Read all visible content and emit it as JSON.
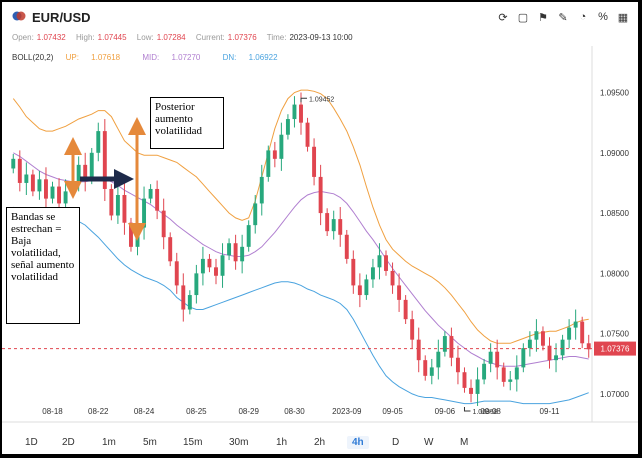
{
  "header": {
    "symbol": "EUR/USD",
    "toolbar_icons": [
      "refresh-icon",
      "square-icon",
      "flag-icon",
      "chart-edit-icon",
      "pie-icon",
      "percent-icon",
      "grid-icon"
    ],
    "ohlc": {
      "open_label": "Open:",
      "open": "1.07432",
      "high_label": "High:",
      "high": "1.07445",
      "low_label": "Low:",
      "low": "1.07284",
      "current_label": "Current:",
      "current": "1.07376",
      "time_label": "Time:",
      "time": "2023-09-13 10:00"
    },
    "boll": {
      "label": "BOLL(20,2)",
      "up_label": "UP:",
      "up": "1.07618",
      "mid_label": "MID:",
      "mid": "1.07270",
      "dn_label": "DN:",
      "dn": "1.06922"
    }
  },
  "colors": {
    "up_candle": "#27a87d",
    "down_candle": "#e0454f",
    "upper_band": "#f0a040",
    "middle_band": "#b07fd0",
    "lower_band": "#4aa3df",
    "price_line": "#e0454f",
    "arrow_orange": "#e5893b",
    "arrow_navy": "#1e2a4a"
  },
  "chart_data": {
    "type": "candlestick",
    "ylim": [
      1.0685,
      1.0972
    ],
    "yticks": [
      "1.09500",
      "1.09000",
      "1.08500",
      "1.08000",
      "1.07500",
      "1.07000"
    ],
    "ytick_values": [
      1.095,
      1.09,
      1.085,
      1.08,
      1.075,
      1.07
    ],
    "xticks": [
      "08-18",
      "08-22",
      "08-24",
      "08-25",
      "08-29",
      "08-30",
      "2023-09",
      "09-05",
      "09-06",
      "09-08",
      "09-11"
    ],
    "xtick_index": [
      6,
      13,
      20,
      28,
      36,
      43,
      51,
      58,
      66,
      73,
      82
    ],
    "current_price": 1.07376,
    "current_label": "1.07376",
    "high_marker": {
      "index": 44,
      "value": 1.09452,
      "label": "1.09452"
    },
    "low_marker": {
      "index": 69,
      "value": 1.06858,
      "label": "1.06858"
    },
    "close": [
      1.0895,
      1.0875,
      1.0882,
      1.0868,
      1.0878,
      1.0862,
      1.0872,
      1.0858,
      1.0868,
      1.0875,
      1.089,
      1.0878,
      1.09,
      1.0918,
      1.087,
      1.0848,
      1.0865,
      1.0842,
      1.0822,
      1.0838,
      1.0862,
      1.087,
      1.0852,
      1.083,
      1.081,
      1.079,
      1.077,
      1.0782,
      1.08,
      1.0812,
      1.0805,
      1.0798,
      1.0815,
      1.0825,
      1.081,
      1.0822,
      1.084,
      1.0858,
      1.088,
      1.0902,
      1.0895,
      1.0915,
      1.0928,
      1.094,
      1.0925,
      1.0905,
      1.088,
      1.085,
      1.0835,
      1.0845,
      1.0832,
      1.0812,
      1.079,
      1.0782,
      1.0795,
      1.0805,
      1.0815,
      1.0802,
      1.079,
      1.0778,
      1.0762,
      1.0745,
      1.0728,
      1.0715,
      1.0722,
      1.0735,
      1.0748,
      1.073,
      1.0718,
      1.0705,
      1.07,
      1.0712,
      1.0725,
      1.0735,
      1.0722,
      1.071,
      1.0712,
      1.0722,
      1.0738,
      1.0745,
      1.0752,
      1.074,
      1.0728,
      1.0732,
      1.0745,
      1.0755,
      1.076,
      1.0742,
      1.0737
    ],
    "upper_band": [
      1.0945,
      1.0938,
      1.093,
      1.0925,
      1.092,
      1.0918,
      1.0918,
      1.092,
      1.0922,
      1.0925,
      1.0928,
      1.093,
      1.0932,
      1.0935,
      1.0935,
      1.093,
      1.092,
      1.091,
      1.0905,
      1.09,
      1.0898,
      1.0898,
      1.0898,
      1.0896,
      1.0894,
      1.0892,
      1.0888,
      1.0884,
      1.088,
      1.0874,
      1.0868,
      1.0862,
      1.0856,
      1.085,
      1.0846,
      1.0844,
      1.0846,
      1.086,
      1.088,
      1.09,
      1.092,
      1.0935,
      1.0945,
      1.095,
      1.0952,
      1.0952,
      1.0951,
      1.0949,
      1.0945,
      1.0937,
      1.0928,
      1.0918,
      1.0905,
      1.089,
      1.0872,
      1.0855,
      1.084,
      1.0828,
      1.082,
      1.0815,
      1.081,
      1.0806,
      1.0803,
      1.08,
      1.0797,
      1.0793,
      1.0788,
      1.0782,
      1.0775,
      1.0768,
      1.076,
      1.0753,
      1.0748,
      1.0744,
      1.0742,
      1.0742,
      1.0742,
      1.0744,
      1.0746,
      1.0748,
      1.075,
      1.0751,
      1.0752,
      1.0752,
      1.0754,
      1.0756,
      1.0759,
      1.0761,
      1.0762
    ],
    "middle_band": [
      1.09,
      1.0897,
      1.0893,
      1.0889,
      1.0885,
      1.0882,
      1.088,
      1.0878,
      1.0877,
      1.0876,
      1.0876,
      1.0876,
      1.0877,
      1.0878,
      1.0878,
      1.0876,
      1.0873,
      1.0869,
      1.0866,
      1.0863,
      1.086,
      1.0857,
      1.0853,
      1.0849,
      1.0845,
      1.084,
      1.0836,
      1.0832,
      1.0828,
      1.0824,
      1.0821,
      1.0818,
      1.0816,
      1.0815,
      1.0814,
      1.0814,
      1.0815,
      1.0818,
      1.0822,
      1.0828,
      1.0834,
      1.0841,
      1.0848,
      1.0855,
      1.0861,
      1.0865,
      1.0867,
      1.0868,
      1.0867,
      1.0866,
      1.0863,
      1.0858,
      1.0851,
      1.0843,
      1.0835,
      1.0828,
      1.082,
      1.0812,
      1.0804,
      1.0797,
      1.079,
      1.0783,
      1.0776,
      1.0769,
      1.0763,
      1.0757,
      1.0752,
      1.0747,
      1.0742,
      1.0738,
      1.0734,
      1.0731,
      1.0728,
      1.0726,
      1.0724,
      1.0723,
      1.0723,
      1.0723,
      1.0724,
      1.0725,
      1.0726,
      1.0727,
      1.0728,
      1.0729,
      1.073,
      1.0731,
      1.0731,
      1.073,
      1.0729
    ],
    "lower_band": [
      1.0855,
      1.085,
      1.0846,
      1.0845,
      1.0844,
      1.0844,
      1.0845,
      1.0846,
      1.0846,
      1.0845,
      1.0843,
      1.084,
      1.0835,
      1.083,
      1.0824,
      1.0818,
      1.0812,
      1.0807,
      1.0803,
      1.08,
      1.0797,
      1.0795,
      1.0793,
      1.079,
      1.0786,
      1.078,
      1.0776,
      1.0772,
      1.077,
      1.077,
      1.0772,
      1.0774,
      1.0776,
      1.0778,
      1.078,
      1.0782,
      1.0784,
      1.0786,
      1.0788,
      1.079,
      1.0792,
      1.0793,
      1.0793,
      1.0792,
      1.079,
      1.0787,
      1.0785,
      1.0782,
      1.078,
      1.0778,
      1.0775,
      1.077,
      1.0762,
      1.0752,
      1.0742,
      1.0732,
      1.0723,
      1.0715,
      1.071,
      1.0706,
      1.0703,
      1.07,
      1.0698,
      1.0697,
      1.0697,
      1.0696,
      1.0695,
      1.0694,
      1.0693,
      1.0692,
      1.0692,
      1.0693,
      1.0694,
      1.0694,
      1.0694,
      1.0694,
      1.0694,
      1.0693,
      1.0692,
      1.0692,
      1.0692,
      1.0692,
      1.0692,
      1.0693,
      1.0694,
      1.0695,
      1.0697,
      1.0699,
      1.0701
    ]
  },
  "annotations": {
    "note_left": "Bandas se estrechan = Baja volatilidad, señal aumento volatilidad",
    "note_top": "Posterior aumento volatilidad"
  },
  "timeframes": [
    {
      "label": "1D",
      "active": false
    },
    {
      "label": "2D",
      "active": false
    },
    {
      "label": "1m",
      "active": false
    },
    {
      "label": "5m",
      "active": false
    },
    {
      "label": "15m",
      "active": false
    },
    {
      "label": "30m",
      "active": false
    },
    {
      "label": "1h",
      "active": false
    },
    {
      "label": "2h",
      "active": false
    },
    {
      "label": "4h",
      "active": true
    },
    {
      "label": "D",
      "active": false
    },
    {
      "label": "W",
      "active": false
    },
    {
      "label": "M",
      "active": false
    }
  ]
}
